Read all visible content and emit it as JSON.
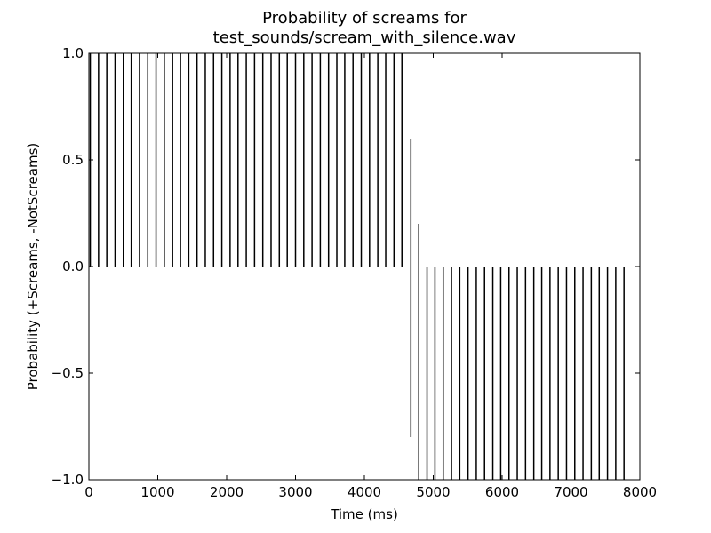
{
  "chart_data": {
    "type": "bar",
    "title": "Probability of screams for",
    "subtitle": "test_sounds/scream_with_silence.wav",
    "xlabel": "Time (ms)",
    "ylabel": "Probability (+Screams, -NotScreams)",
    "xlim": [
      0,
      8000
    ],
    "ylim": [
      -1.0,
      1.0
    ],
    "grid": false,
    "x_ticks": [
      {
        "value": 0,
        "label": "0"
      },
      {
        "value": 1000,
        "label": "1000"
      },
      {
        "value": 2000,
        "label": "2000"
      },
      {
        "value": 3000,
        "label": "3000"
      },
      {
        "value": 4000,
        "label": "4000"
      },
      {
        "value": 5000,
        "label": "5000"
      },
      {
        "value": 6000,
        "label": "6000"
      },
      {
        "value": 7000,
        "label": "7000"
      },
      {
        "value": 8000,
        "label": "8000"
      }
    ],
    "y_ticks": [
      {
        "value": 1.0,
        "label": "1.0"
      },
      {
        "value": 0.5,
        "label": "0.5"
      },
      {
        "value": 0.0,
        "label": "0.0"
      },
      {
        "value": -0.5,
        "label": "−0.5"
      },
      {
        "value": -1.0,
        "label": "−1.0"
      }
    ],
    "bars": [
      {
        "x": 20,
        "y0": 0.0,
        "y1": 1.0
      },
      {
        "x": 140,
        "y0": 0.0,
        "y1": 1.0
      },
      {
        "x": 260,
        "y0": 0.0,
        "y1": 1.0
      },
      {
        "x": 380,
        "y0": 0.0,
        "y1": 1.0
      },
      {
        "x": 500,
        "y0": 0.0,
        "y1": 1.0
      },
      {
        "x": 615,
        "y0": 0.0,
        "y1": 1.0
      },
      {
        "x": 735,
        "y0": 0.0,
        "y1": 1.0
      },
      {
        "x": 855,
        "y0": 0.0,
        "y1": 1.0
      },
      {
        "x": 975,
        "y0": 0.0,
        "y1": 1.0
      },
      {
        "x": 1095,
        "y0": 0.0,
        "y1": 1.0
      },
      {
        "x": 1215,
        "y0": 0.0,
        "y1": 1.0
      },
      {
        "x": 1330,
        "y0": 0.0,
        "y1": 1.0
      },
      {
        "x": 1450,
        "y0": 0.0,
        "y1": 1.0
      },
      {
        "x": 1570,
        "y0": 0.0,
        "y1": 1.0
      },
      {
        "x": 1690,
        "y0": 0.0,
        "y1": 1.0
      },
      {
        "x": 1810,
        "y0": 0.0,
        "y1": 1.0
      },
      {
        "x": 1930,
        "y0": 0.0,
        "y1": 1.0
      },
      {
        "x": 2050,
        "y0": 0.0,
        "y1": 1.0
      },
      {
        "x": 2165,
        "y0": 0.0,
        "y1": 1.0
      },
      {
        "x": 2285,
        "y0": 0.0,
        "y1": 1.0
      },
      {
        "x": 2405,
        "y0": 0.0,
        "y1": 1.0
      },
      {
        "x": 2525,
        "y0": 0.0,
        "y1": 1.0
      },
      {
        "x": 2645,
        "y0": 0.0,
        "y1": 1.0
      },
      {
        "x": 2765,
        "y0": 0.0,
        "y1": 1.0
      },
      {
        "x": 2880,
        "y0": 0.0,
        "y1": 1.0
      },
      {
        "x": 3000,
        "y0": 0.0,
        "y1": 1.0
      },
      {
        "x": 3120,
        "y0": 0.0,
        "y1": 1.0
      },
      {
        "x": 3240,
        "y0": 0.0,
        "y1": 1.0
      },
      {
        "x": 3360,
        "y0": 0.0,
        "y1": 1.0
      },
      {
        "x": 3480,
        "y0": 0.0,
        "y1": 1.0
      },
      {
        "x": 3600,
        "y0": 0.0,
        "y1": 1.0
      },
      {
        "x": 3715,
        "y0": 0.0,
        "y1": 1.0
      },
      {
        "x": 3835,
        "y0": 0.0,
        "y1": 1.0
      },
      {
        "x": 3955,
        "y0": 0.0,
        "y1": 1.0
      },
      {
        "x": 4075,
        "y0": 0.0,
        "y1": 1.0
      },
      {
        "x": 4195,
        "y0": 0.0,
        "y1": 1.0
      },
      {
        "x": 4310,
        "y0": 0.0,
        "y1": 1.0
      },
      {
        "x": 4430,
        "y0": 0.0,
        "y1": 1.0
      },
      {
        "x": 4545,
        "y0": 0.0,
        "y1": 1.0
      },
      {
        "x": 4675,
        "y0": -0.8,
        "y1": 0.6
      },
      {
        "x": 4790,
        "y0": -1.6,
        "y1": 0.2
      },
      {
        "x": 4910,
        "y0": -1.0,
        "y1": 0.0
      },
      {
        "x": 5025,
        "y0": -1.0,
        "y1": 0.0
      },
      {
        "x": 5145,
        "y0": -1.0,
        "y1": 0.0
      },
      {
        "x": 5265,
        "y0": -1.0,
        "y1": 0.0
      },
      {
        "x": 5385,
        "y0": -1.0,
        "y1": 0.0
      },
      {
        "x": 5505,
        "y0": -1.0,
        "y1": 0.0
      },
      {
        "x": 5625,
        "y0": -1.0,
        "y1": 0.0
      },
      {
        "x": 5745,
        "y0": -1.0,
        "y1": 0.0
      },
      {
        "x": 5865,
        "y0": -1.0,
        "y1": 0.0
      },
      {
        "x": 5980,
        "y0": -1.0,
        "y1": 0.0
      },
      {
        "x": 6100,
        "y0": -1.0,
        "y1": 0.0
      },
      {
        "x": 6220,
        "y0": -1.0,
        "y1": 0.0
      },
      {
        "x": 6340,
        "y0": -1.0,
        "y1": 0.0
      },
      {
        "x": 6460,
        "y0": -1.0,
        "y1": 0.0
      },
      {
        "x": 6575,
        "y0": -1.0,
        "y1": 0.0
      },
      {
        "x": 6695,
        "y0": -1.0,
        "y1": 0.0
      },
      {
        "x": 6815,
        "y0": -1.0,
        "y1": 0.0
      },
      {
        "x": 6935,
        "y0": -1.0,
        "y1": 0.0
      },
      {
        "x": 7055,
        "y0": -1.0,
        "y1": 0.0
      },
      {
        "x": 7175,
        "y0": -1.0,
        "y1": 0.0
      },
      {
        "x": 7295,
        "y0": -1.0,
        "y1": 0.0
      },
      {
        "x": 7410,
        "y0": -1.0,
        "y1": 0.0
      },
      {
        "x": 7530,
        "y0": -1.0,
        "y1": 0.0
      },
      {
        "x": 7650,
        "y0": -1.0,
        "y1": 0.0
      },
      {
        "x": 7770,
        "y0": -1.0,
        "y1": 0.0
      }
    ],
    "colors": {
      "bar": "#000000",
      "axes": "#000000",
      "background": "#ffffff"
    }
  }
}
